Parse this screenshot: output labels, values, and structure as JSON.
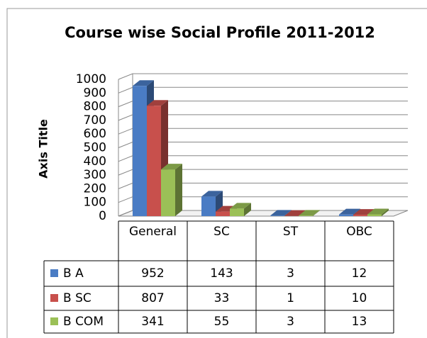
{
  "chart_data": {
    "type": "bar3d",
    "title": "Course wise Social Profile 2011-2012",
    "y_label": "Axis Title",
    "categories": [
      "General",
      "SC",
      "ST",
      "OBC"
    ],
    "series": [
      {
        "name": "B A",
        "color": "#4a7cc4",
        "values": [
          952,
          143,
          3,
          12
        ]
      },
      {
        "name": "B SC",
        "color": "#c8504c",
        "values": [
          807,
          33,
          1,
          10
        ]
      },
      {
        "name": "B COM",
        "color": "#9bc057",
        "values": [
          341,
          55,
          3,
          13
        ]
      }
    ],
    "ylim": [
      0,
      1000
    ],
    "yticks": [
      0,
      100,
      200,
      300,
      400,
      500,
      600,
      700,
      800,
      900,
      1000
    ],
    "grid": true
  }
}
